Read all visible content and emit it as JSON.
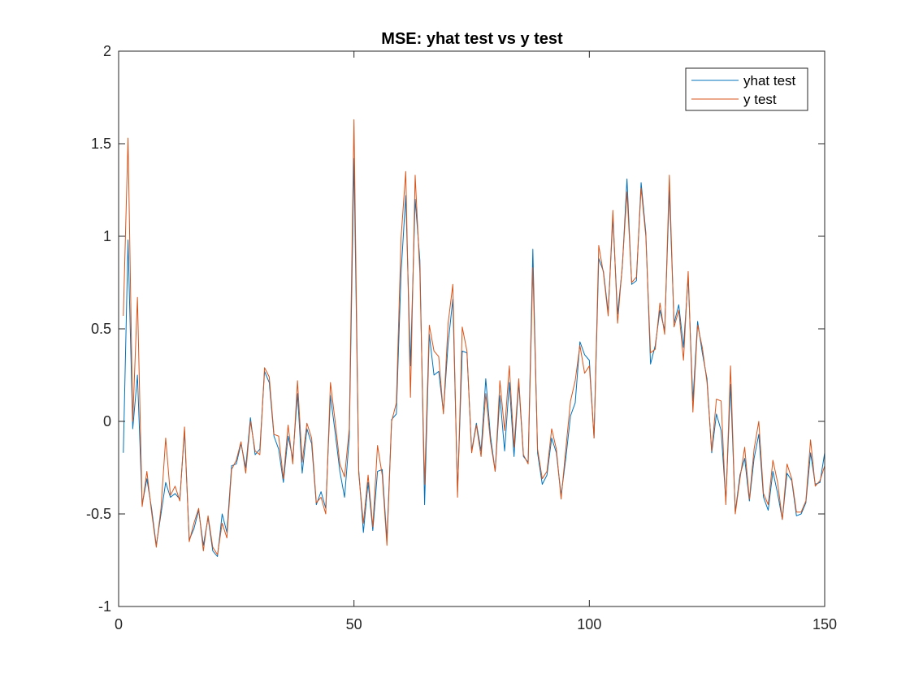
{
  "chart_data": {
    "type": "line",
    "title": "MSE: yhat test vs y test",
    "xlabel": "",
    "ylabel": "",
    "xlim": [
      0,
      150
    ],
    "ylim": [
      -1,
      2
    ],
    "xticks": [
      0,
      50,
      100,
      150
    ],
    "yticks": [
      -1,
      -0.5,
      0,
      0.5,
      1,
      1.5,
      2
    ],
    "xtick_labels": [
      "0",
      "50",
      "100",
      "150"
    ],
    "ytick_labels": [
      "-1",
      "-0.5",
      "0",
      "0.5",
      "1",
      "1.5",
      "2"
    ],
    "grid": false,
    "legend_position": "top-right",
    "x": [
      1,
      2,
      3,
      4,
      5,
      6,
      7,
      8,
      9,
      10,
      11,
      12,
      13,
      14,
      15,
      16,
      17,
      18,
      19,
      20,
      21,
      22,
      23,
      24,
      25,
      26,
      27,
      28,
      29,
      30,
      31,
      32,
      33,
      34,
      35,
      36,
      37,
      38,
      39,
      40,
      41,
      42,
      43,
      44,
      45,
      46,
      47,
      48,
      49,
      50,
      51,
      52,
      53,
      54,
      55,
      56,
      57,
      58,
      59,
      60,
      61,
      62,
      63,
      64,
      65,
      66,
      67,
      68,
      69,
      70,
      71,
      72,
      73,
      74,
      75,
      76,
      77,
      78,
      79,
      80,
      81,
      82,
      83,
      84,
      85,
      86,
      87,
      88,
      89,
      90,
      91,
      92,
      93,
      94,
      95,
      96,
      97,
      98,
      99,
      100,
      101,
      102,
      103,
      104,
      105,
      106,
      107,
      108,
      109,
      110,
      111,
      112,
      113,
      114,
      115,
      116,
      117,
      118,
      119,
      120,
      121,
      122,
      123,
      124,
      125,
      126,
      127,
      128,
      129,
      130,
      131,
      132,
      133,
      134,
      135,
      136,
      137,
      138,
      139,
      140,
      141,
      142,
      143,
      144,
      145,
      146,
      147,
      148,
      149,
      150
    ],
    "series": [
      {
        "name": "yhat test",
        "color": "#0072BD",
        "values": [
          -0.17,
          0.98,
          -0.04,
          0.25,
          -0.45,
          -0.31,
          -0.47,
          -0.67,
          -0.5,
          -0.33,
          -0.41,
          -0.39,
          -0.42,
          -0.05,
          -0.64,
          -0.58,
          -0.48,
          -0.67,
          -0.52,
          -0.7,
          -0.73,
          -0.5,
          -0.6,
          -0.24,
          -0.23,
          -0.12,
          -0.25,
          0.02,
          -0.18,
          -0.15,
          0.27,
          0.21,
          -0.08,
          -0.15,
          -0.33,
          -0.08,
          -0.2,
          0.15,
          -0.28,
          -0.04,
          -0.12,
          -0.45,
          -0.38,
          -0.47,
          0.14,
          -0.06,
          -0.27,
          -0.41,
          -0.09,
          1.42,
          -0.26,
          -0.6,
          -0.33,
          -0.59,
          -0.27,
          -0.26,
          -0.64,
          0.01,
          0.04,
          0.8,
          1.22,
          0.3,
          1.2,
          0.87,
          -0.45,
          0.47,
          0.25,
          0.27,
          0.05,
          0.42,
          0.66,
          -0.38,
          0.38,
          0.37,
          -0.16,
          -0.01,
          -0.16,
          0.23,
          -0.08,
          -0.27,
          0.14,
          -0.16,
          0.21,
          -0.19,
          0.21,
          -0.19,
          -0.22,
          0.93,
          -0.17,
          -0.34,
          -0.29,
          -0.09,
          -0.17,
          -0.4,
          -0.2,
          0.03,
          0.1,
          0.43,
          0.36,
          0.33,
          -0.09,
          0.88,
          0.81,
          0.59,
          1.1,
          0.58,
          0.83,
          1.31,
          0.74,
          0.76,
          1.29,
          1.02,
          0.31,
          0.41,
          0.6,
          0.49,
          1.25,
          0.53,
          0.63,
          0.4,
          0.78,
          0.11,
          0.54,
          0.37,
          0.23,
          -0.17,
          0.04,
          -0.05,
          -0.43,
          0.2,
          -0.49,
          -0.29,
          -0.2,
          -0.43,
          -0.2,
          -0.07,
          -0.41,
          -0.48,
          -0.27,
          -0.39,
          -0.53,
          -0.28,
          -0.32,
          -0.51,
          -0.5,
          -0.44,
          -0.17,
          -0.34,
          -0.33,
          -0.17
        ]
      },
      {
        "name": "y test",
        "color": "#D95319",
        "values": [
          0.57,
          1.53,
          0.0,
          0.67,
          -0.46,
          -0.27,
          -0.49,
          -0.68,
          -0.47,
          -0.09,
          -0.4,
          -0.35,
          -0.43,
          -0.03,
          -0.65,
          -0.55,
          -0.47,
          -0.7,
          -0.51,
          -0.68,
          -0.72,
          -0.55,
          -0.63,
          -0.26,
          -0.21,
          -0.11,
          -0.28,
          0.0,
          -0.16,
          -0.18,
          0.29,
          0.24,
          -0.07,
          -0.08,
          -0.31,
          -0.02,
          -0.23,
          0.22,
          -0.22,
          -0.01,
          -0.09,
          -0.44,
          -0.41,
          -0.5,
          0.21,
          0.0,
          -0.23,
          -0.3,
          -0.04,
          1.63,
          -0.28,
          -0.55,
          -0.29,
          -0.57,
          -0.13,
          -0.29,
          -0.67,
          0.0,
          0.1,
          0.99,
          1.35,
          0.13,
          1.33,
          0.8,
          -0.34,
          0.52,
          0.38,
          0.35,
          0.04,
          0.53,
          0.74,
          -0.41,
          0.51,
          0.38,
          -0.17,
          -0.02,
          -0.19,
          0.15,
          -0.11,
          -0.27,
          0.22,
          -0.05,
          0.3,
          -0.14,
          0.23,
          -0.18,
          -0.23,
          0.83,
          -0.15,
          -0.31,
          -0.27,
          -0.04,
          -0.15,
          -0.42,
          -0.15,
          0.11,
          0.22,
          0.41,
          0.26,
          0.3,
          -0.09,
          0.95,
          0.8,
          0.57,
          1.14,
          0.53,
          0.84,
          1.24,
          0.75,
          0.78,
          1.26,
          1.0,
          0.37,
          0.39,
          0.64,
          0.47,
          1.33,
          0.51,
          0.6,
          0.33,
          0.81,
          0.05,
          0.52,
          0.4,
          0.21,
          -0.16,
          0.12,
          0.11,
          -0.45,
          0.3,
          -0.5,
          -0.31,
          -0.14,
          -0.42,
          -0.15,
          0.0,
          -0.39,
          -0.45,
          -0.21,
          -0.33,
          -0.53,
          -0.23,
          -0.31,
          -0.49,
          -0.49,
          -0.43,
          -0.1,
          -0.35,
          -0.32,
          -0.24
        ]
      }
    ]
  }
}
